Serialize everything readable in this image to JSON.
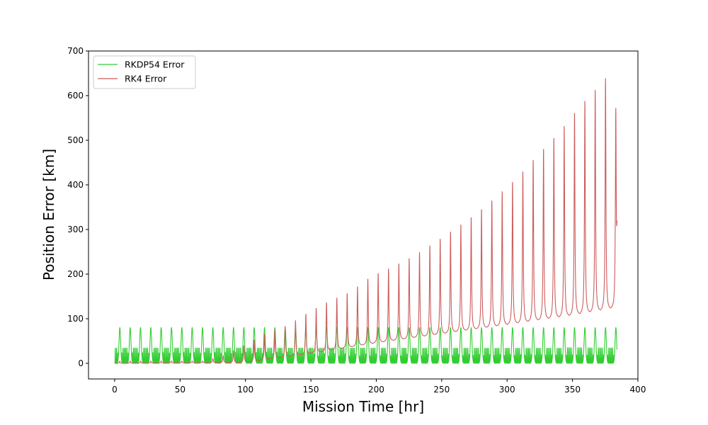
{
  "chart_data": {
    "type": "line",
    "title": "",
    "xlabel": "Mission Time [hr]",
    "ylabel": "Position Error [km]",
    "xlim": [
      -20,
      400
    ],
    "ylim": [
      -35,
      700
    ],
    "xticks": [
      0,
      50,
      100,
      150,
      200,
      250,
      300,
      350,
      400
    ],
    "yticks": [
      0,
      100,
      200,
      300,
      400,
      500,
      600,
      700
    ],
    "xtick_labels": [
      "0",
      "50",
      "100",
      "150",
      "200",
      "250",
      "300",
      "350",
      "400"
    ],
    "ytick_labels": [
      "0",
      "100",
      "200",
      "300",
      "400",
      "500",
      "600",
      "700"
    ],
    "grid": false,
    "legend_position": "upper-left",
    "series": [
      {
        "name": "RKDP54 Error",
        "color": "#32cd32",
        "x_range": [
          0,
          384
        ],
        "period_hr": 7.9,
        "peak_km": 80,
        "peak_offset_hr": 3.95,
        "secondary_peak_km": 35,
        "baseline_km": 0
      },
      {
        "name": "RK4 Error",
        "color": "#cd5c5c",
        "x_range": [
          0,
          384
        ],
        "period_hr": 7.9,
        "peak_offset_hr": 3.95,
        "peaks": [
          {
            "x": 68,
            "y": 5
          },
          {
            "x": 84,
            "y": 18
          },
          {
            "x": 100,
            "y": 42
          },
          {
            "x": 116,
            "y": 68
          },
          {
            "x": 132,
            "y": 85
          },
          {
            "x": 148,
            "y": 114
          },
          {
            "x": 164,
            "y": 140
          },
          {
            "x": 180,
            "y": 160
          },
          {
            "x": 196,
            "y": 195
          },
          {
            "x": 212,
            "y": 216
          },
          {
            "x": 228,
            "y": 240
          },
          {
            "x": 244,
            "y": 270
          },
          {
            "x": 260,
            "y": 302
          },
          {
            "x": 276,
            "y": 335
          },
          {
            "x": 292,
            "y": 375
          },
          {
            "x": 308,
            "y": 418
          },
          {
            "x": 324,
            "y": 470
          },
          {
            "x": 340,
            "y": 520
          },
          {
            "x": 356,
            "y": 580
          },
          {
            "x": 372,
            "y": 628
          },
          {
            "x": 382,
            "y": 668
          }
        ],
        "troughs": [
          {
            "x": 0,
            "y": 0
          },
          {
            "x": 100,
            "y": 2
          },
          {
            "x": 150,
            "y": 22
          },
          {
            "x": 200,
            "y": 45
          },
          {
            "x": 250,
            "y": 65
          },
          {
            "x": 300,
            "y": 85
          },
          {
            "x": 350,
            "y": 105
          },
          {
            "x": 380,
            "y": 120
          }
        ],
        "final_y": 320
      }
    ]
  }
}
